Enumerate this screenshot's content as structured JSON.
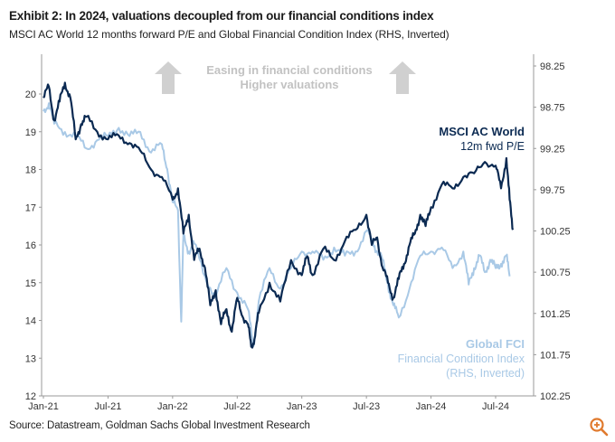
{
  "header": {
    "title": "Exhibit 2: In 2024, valuations decoupled from our financial conditions index",
    "subtitle": "MSCI AC World 12 months forward P/E and Global Financial Condition Index (RHS, Inverted)"
  },
  "footer": {
    "source": "Source: Datastream, Goldman Sachs Global Investment Research"
  },
  "icons": {
    "zoom": "zoom-magnifier-icon"
  },
  "colors": {
    "msci": "#0b2a52",
    "fci": "#a9c9e6",
    "arrow": "#d0d0d0",
    "annotation": "#c2c2c2"
  },
  "chart_data": {
    "type": "line",
    "title": "",
    "annotations": {
      "arrow_line1": "Easing in financial conditions",
      "arrow_line2": "Higher valuations"
    },
    "x_ticks": [
      "Jan-21",
      "Jul-21",
      "Jan-22",
      "Jul-22",
      "Jan-23",
      "Jul-23",
      "Jan-24",
      "Jul-24"
    ],
    "x_tick_values": [
      0,
      6,
      12,
      18,
      24,
      30,
      36,
      42
    ],
    "xlim": [
      0,
      45
    ],
    "y_left": {
      "ylim": [
        12,
        20.5
      ],
      "ticks": [
        "12",
        "13",
        "14",
        "15",
        "16",
        "17",
        "18",
        "19",
        "20"
      ]
    },
    "y_right": {
      "ylim": [
        102.25,
        98.25
      ],
      "inverted": true,
      "ticks": [
        "98.25",
        "98.75",
        "99.25",
        "99.75",
        "100.25",
        "100.75",
        "101.25",
        "101.75",
        "102.25"
      ]
    },
    "series": [
      {
        "name": "MSCI AC World",
        "legend_line1": "MSCI AC World",
        "legend_line2": "12m fwd P/E",
        "axis": "left",
        "x": [
          0,
          0.5,
          1,
          1.5,
          2,
          2.5,
          3,
          3.5,
          4,
          5,
          6,
          7,
          8,
          9,
          10,
          11,
          12,
          12.5,
          13,
          13.5,
          14,
          14.5,
          15,
          15.5,
          16,
          16.5,
          17,
          17.5,
          18,
          18.5,
          19,
          19.3,
          19.6,
          20,
          21,
          22,
          23,
          24,
          24.5,
          25,
          26,
          27,
          28,
          29,
          30,
          30.5,
          31,
          31.5,
          32,
          32.5,
          33,
          33.5,
          34,
          34.5,
          35,
          35.5,
          36,
          37,
          38,
          39,
          40,
          41,
          42,
          42.5,
          43,
          43.3,
          43.6
        ],
        "values": [
          19.9,
          20.2,
          19.3,
          19.8,
          20.3,
          19.9,
          18.8,
          19.2,
          19.4,
          19.0,
          18.8,
          18.9,
          18.7,
          18.5,
          18.0,
          17.8,
          17.2,
          17.5,
          16.3,
          16.8,
          15.6,
          15.9,
          15.4,
          14.4,
          14.8,
          13.9,
          14.3,
          13.7,
          14.6,
          14.1,
          13.9,
          13.3,
          13.5,
          14.2,
          15.0,
          14.5,
          15.6,
          15.2,
          15.7,
          15.2,
          15.9,
          15.6,
          16.1,
          16.4,
          16.8,
          16.0,
          16.2,
          15.4,
          15.0,
          14.6,
          15.1,
          15.5,
          16.0,
          16.3,
          16.8,
          16.5,
          17.0,
          17.6,
          17.5,
          17.8,
          17.9,
          18.2,
          18.1,
          17.5,
          18.3,
          17.2,
          16.4
        ]
      },
      {
        "name": "Global FCI",
        "legend_line1": "Global FCI",
        "legend_line2": "Financial Condition Index",
        "legend_line3": "(RHS, Inverted)",
        "axis": "right",
        "x": [
          0,
          0.5,
          1,
          2,
          3,
          4,
          5,
          6,
          7,
          8,
          9,
          10,
          11,
          11.5,
          12,
          12.5,
          12.8,
          13,
          13.5,
          14,
          15,
          16,
          17,
          18,
          19,
          19.5,
          20,
          21,
          22,
          23,
          24,
          25,
          26,
          27,
          28,
          29,
          30,
          30.5,
          31,
          31.5,
          32,
          32.5,
          33,
          34,
          35,
          36,
          37,
          38,
          39,
          39.5,
          40,
          40.5,
          41,
          41.5,
          42,
          42.5,
          43,
          43.3
        ],
        "values": [
          98.8,
          98.7,
          98.95,
          99.05,
          99.1,
          99.25,
          99.15,
          99.1,
          99.0,
          99.1,
          99.05,
          99.3,
          99.2,
          99.5,
          99.9,
          100.0,
          101.35,
          100.3,
          100.5,
          100.4,
          100.8,
          101.05,
          100.7,
          101.0,
          101.2,
          101.65,
          101.1,
          100.7,
          100.95,
          100.7,
          100.5,
          100.5,
          100.6,
          100.45,
          100.55,
          100.5,
          100.25,
          100.35,
          100.5,
          100.6,
          100.9,
          101.15,
          101.3,
          100.95,
          100.55,
          100.5,
          100.45,
          100.7,
          100.5,
          100.9,
          100.7,
          100.55,
          100.75,
          100.6,
          100.7,
          100.65,
          100.55,
          100.8
        ]
      }
    ]
  }
}
